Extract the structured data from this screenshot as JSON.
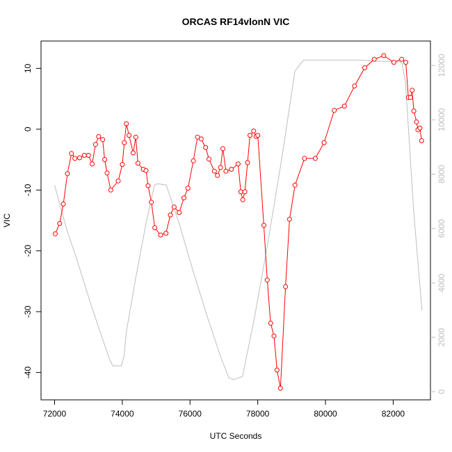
{
  "chart_data": {
    "type": "line",
    "title": "ORCAS RF14vlonN VIC",
    "xlabel": "UTC Seconds",
    "ylabel": "VIC",
    "xlim": [
      71600,
      83100
    ],
    "ylim": [
      -44.5,
      14.5
    ],
    "y2lim": [
      -300,
      12900
    ],
    "x_ticks": [
      72000,
      74000,
      76000,
      78000,
      80000,
      82000
    ],
    "y_ticks": [
      -40,
      -30,
      -20,
      -10,
      0,
      10
    ],
    "y2_ticks": [
      0,
      2000,
      4000,
      6000,
      8000,
      10000,
      12000
    ],
    "grid": false,
    "legend": "none",
    "series": [
      {
        "color": "#ff0000",
        "style": "line+points",
        "axis": "left",
        "x": [
          72020,
          72150,
          72260,
          72380,
          72500,
          72600,
          72740,
          72880,
          73000,
          73110,
          73210,
          73300,
          73420,
          73480,
          73550,
          73660,
          73880,
          74000,
          74060,
          74120,
          74200,
          74320,
          74400,
          74460,
          74620,
          74700,
          74760,
          74860,
          74960,
          75130,
          75290,
          75420,
          75530,
          75680,
          75820,
          75940,
          76100,
          76220,
          76330,
          76460,
          76560,
          76720,
          76810,
          76900,
          76970,
          77060,
          77220,
          77420,
          77500,
          77560,
          77620,
          77700,
          77770,
          77880,
          77950,
          78000,
          78180,
          78280,
          78380,
          78480,
          78570,
          78670,
          78820,
          78940,
          79100,
          79380,
          79700,
          79960,
          80260,
          80560,
          80860,
          81160,
          81440,
          81720,
          82020,
          82250,
          82370,
          82450,
          82510,
          82560,
          82610,
          82690,
          82730,
          82790,
          82840
        ],
        "y": [
          -17.2,
          -15.5,
          -12.3,
          -7.3,
          -4.0,
          -4.8,
          -4.7,
          -4.3,
          -4.3,
          -5.7,
          -2.5,
          -1.2,
          -1.7,
          -5.0,
          -7.2,
          -10.0,
          -8.5,
          -5.8,
          -2.2,
          0.9,
          -1.0,
          -3.9,
          -1.3,
          -5.6,
          -6.6,
          -6.8,
          -9.3,
          -12.0,
          -16.2,
          -17.4,
          -17.1,
          -14.1,
          -12.8,
          -13.7,
          -11.3,
          -9.7,
          -5.2,
          -1.3,
          -1.6,
          -3.0,
          -4.9,
          -6.9,
          -7.6,
          -6.3,
          -3.2,
          -6.9,
          -6.6,
          -5.7,
          -10.3,
          -11.6,
          -10.3,
          -5.5,
          -1.0,
          -0.3,
          -1.2,
          -1.0,
          -15.8,
          -24.8,
          -31.9,
          -34.0,
          -39.6,
          -42.6,
          -25.9,
          -14.8,
          -9.2,
          -4.8,
          -4.8,
          -2.2,
          3.1,
          3.8,
          7.1,
          10.1,
          11.5,
          12.1,
          11.0,
          11.5,
          11.0,
          5.2,
          5.2,
          6.4,
          3.0,
          1.2,
          -0.1,
          0.2,
          -1.9
        ]
      },
      {
        "color": "#bebebe",
        "style": "line",
        "axis": "right",
        "x": [
          72000,
          72350,
          72650,
          73050,
          73400,
          73620,
          73720,
          73970,
          74050,
          74120,
          74400,
          74700,
          74950,
          75050,
          75300,
          75700,
          76100,
          76500,
          76900,
          77150,
          77300,
          77550,
          77900,
          78300,
          78700,
          79100,
          79350,
          79800,
          80400,
          81000,
          81600,
          82000,
          82180,
          82260,
          82360,
          82460,
          82600,
          82850
        ],
        "y": [
          7600,
          6000,
          4900,
          3300,
          2000,
          1200,
          950,
          950,
          1300,
          2200,
          4200,
          6200,
          7600,
          7650,
          7600,
          6100,
          4400,
          2800,
          1300,
          500,
          450,
          560,
          2700,
          5500,
          8500,
          11800,
          12200,
          12200,
          12200,
          12200,
          12150,
          12150,
          12150,
          12080,
          11400,
          9500,
          6700,
          3000
        ]
      }
    ]
  }
}
